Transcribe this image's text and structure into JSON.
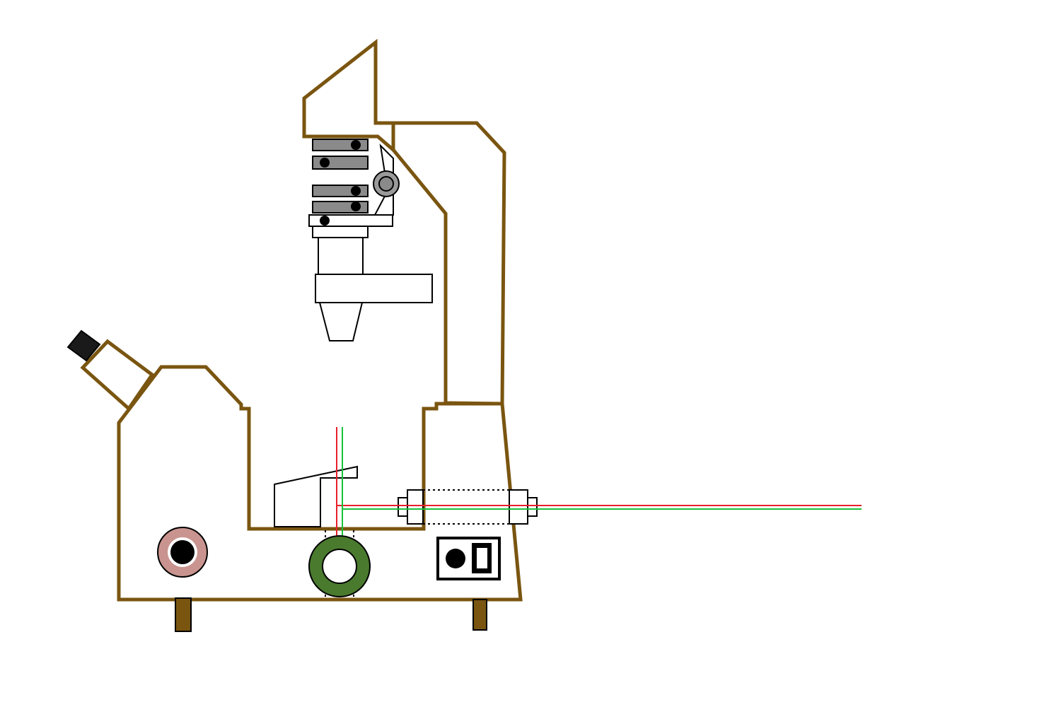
{
  "diagram": {
    "kind": "inverted microscope schematic with laser beam path",
    "colors": {
      "frame": "#7a5510",
      "feet": "#7a5510",
      "laser_red": "#e8202a",
      "laser_green": "#18c23a",
      "focus_knob_outer": "#c9948f",
      "fine_knob_outer": "#4a7a2e",
      "objective_body": "#8a8a8a",
      "eyepiece_cap": "#1a1a1a",
      "turret_knob": "#9a9a9a",
      "outline": "#000000",
      "background": "#ffffff"
    },
    "icons": {
      "eyepiece": "eyepiece-icon",
      "coarse_focus": "coarse-focus-knob-icon",
      "fine_focus": "fine-focus-knob-icon",
      "power": "power-switch-icon"
    }
  }
}
